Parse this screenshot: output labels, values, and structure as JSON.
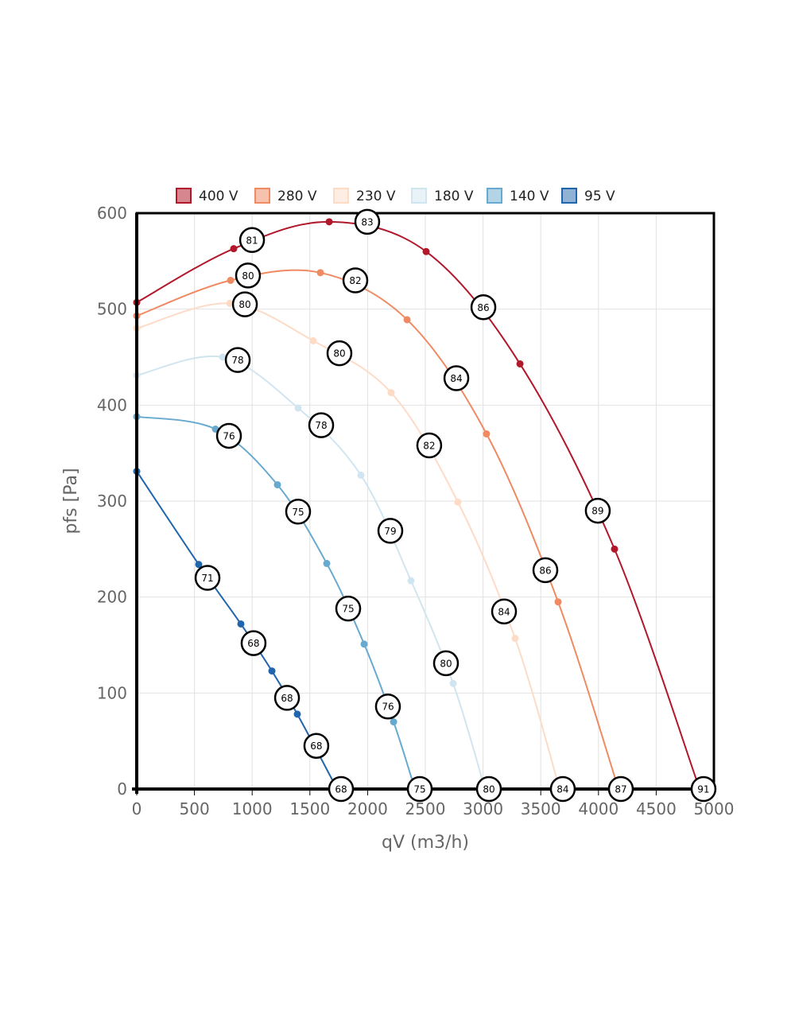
{
  "chart_data": {
    "type": "line",
    "xlabel": "qV (m3/h)",
    "ylabel": "pfs [Pa]",
    "xlim": [
      0,
      5000
    ],
    "ylim": [
      0,
      600
    ],
    "xticks": [
      "0",
      "500",
      "1000",
      "1500",
      "2000",
      "2500",
      "3000",
      "3500",
      "4000",
      "4500",
      "5000"
    ],
    "yticks": [
      "0",
      "100",
      "200",
      "300",
      "400",
      "500",
      "600"
    ],
    "grid": true,
    "legend_position": "top",
    "series": [
      {
        "name": "400 V",
        "color": "#b2182b",
        "fill": "#d6868f",
        "points": [
          [
            0,
            507
          ],
          [
            840,
            563
          ],
          [
            1667,
            591
          ],
          [
            2507,
            560
          ],
          [
            3320,
            443
          ],
          [
            4139,
            250
          ],
          [
            4876,
            0
          ]
        ],
        "labels": [
          [
            999,
            572,
            "81"
          ],
          [
            1997,
            591,
            "83"
          ],
          [
            3003,
            502,
            "86"
          ],
          [
            3994,
            290,
            "89"
          ],
          [
            4910,
            0,
            "91"
          ]
        ]
      },
      {
        "name": "280 V",
        "color": "#ef8a62",
        "fill": "#f7c2ad",
        "points": [
          [
            0,
            493
          ],
          [
            813,
            530
          ],
          [
            1591,
            538
          ],
          [
            2342,
            489
          ],
          [
            3030,
            370
          ],
          [
            3650,
            195
          ],
          [
            4174,
            0
          ]
        ],
        "labels": [
          [
            964,
            535,
            "80"
          ],
          [
            1894,
            530,
            "82"
          ],
          [
            2769,
            428,
            "84"
          ],
          [
            3540,
            228,
            "86"
          ],
          [
            4194,
            0,
            "87"
          ]
        ]
      },
      {
        "name": "230 V",
        "color": "#fddbc7",
        "fill": "#feede3",
        "points": [
          [
            0,
            480
          ],
          [
            806,
            506
          ],
          [
            1529,
            467
          ],
          [
            2204,
            413
          ],
          [
            2782,
            299
          ],
          [
            3278,
            157
          ],
          [
            3664,
            0
          ]
        ],
        "labels": [
          [
            937,
            505,
            "80"
          ],
          [
            1756,
            454,
            "80"
          ],
          [
            2534,
            358,
            "82"
          ],
          [
            3182,
            185,
            "84"
          ],
          [
            3691,
            0,
            "84"
          ]
        ]
      },
      {
        "name": "180 V",
        "color": "#d1e5f0",
        "fill": "#e8f2f7",
        "points": [
          [
            0,
            431
          ],
          [
            744,
            450
          ],
          [
            1398,
            397
          ],
          [
            1942,
            327
          ],
          [
            2376,
            217
          ],
          [
            2741,
            110
          ],
          [
            3017,
            0
          ]
        ],
        "labels": [
          [
            875,
            447,
            "78"
          ],
          [
            1598,
            379,
            "78"
          ],
          [
            2197,
            269,
            "79"
          ],
          [
            2679,
            131,
            "80"
          ],
          [
            3051,
            0,
            "80"
          ]
        ]
      },
      {
        "name": "140 V",
        "color": "#67a9cf",
        "fill": "#b3d4e7",
        "points": [
          [
            0,
            388
          ],
          [
            682,
            375
          ],
          [
            1219,
            317
          ],
          [
            1646,
            235
          ],
          [
            1970,
            151
          ],
          [
            2225,
            70
          ],
          [
            2410,
            0
          ]
        ],
        "labels": [
          [
            799,
            368,
            "76"
          ],
          [
            1398,
            289,
            "75"
          ],
          [
            1832,
            188,
            "75"
          ],
          [
            2176,
            86,
            "76"
          ],
          [
            2452,
            0,
            "75"
          ]
        ]
      },
      {
        "name": "95 V",
        "color": "#2166ac",
        "fill": "#90b2d5",
        "points": [
          [
            0,
            331
          ],
          [
            537,
            234
          ],
          [
            902,
            172
          ],
          [
            1171,
            123
          ],
          [
            1391,
            78
          ],
          [
            1736,
            0
          ]
        ],
        "labels": [
          [
            613,
            220,
            "71"
          ],
          [
            1012,
            152,
            "68"
          ],
          [
            1302,
            95,
            "68"
          ],
          [
            1556,
            45,
            "68"
          ],
          [
            1770,
            0,
            "68"
          ]
        ]
      }
    ]
  }
}
